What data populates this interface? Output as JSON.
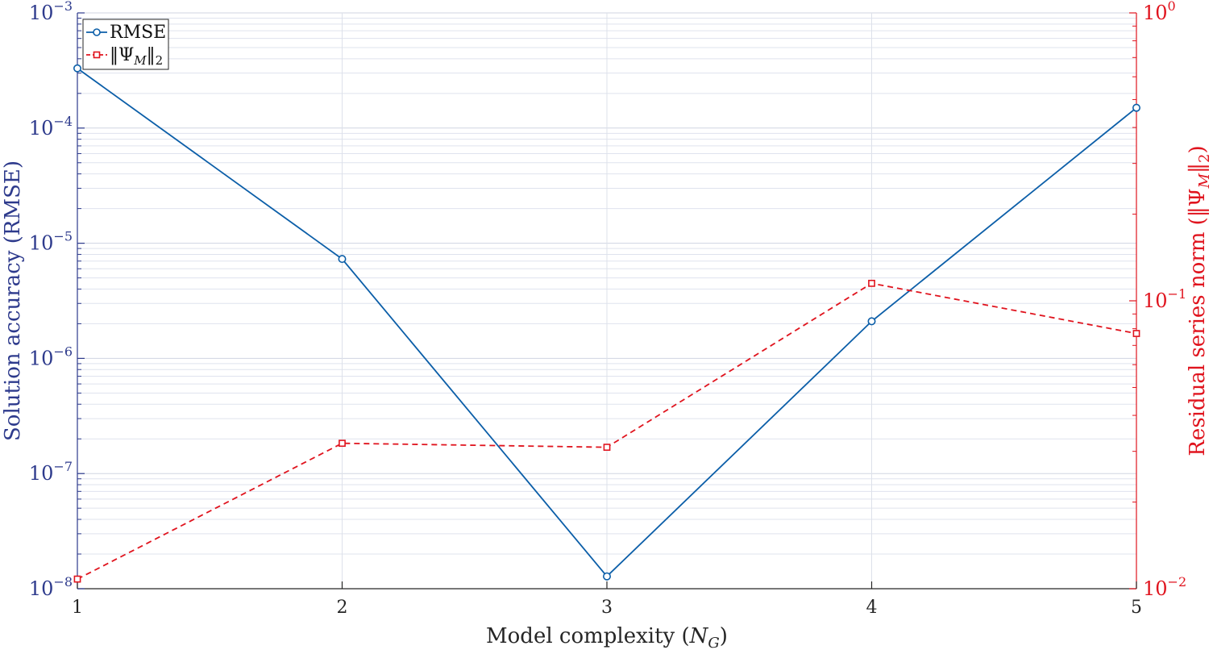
{
  "chart_data": {
    "type": "line",
    "xlabel": "Model complexity (N_G)",
    "ylabel_left": "Solution accuracy (RMSE)",
    "ylabel_right": "Residual series norm (‖Ψ_M‖₂)",
    "x": [
      1,
      2,
      3,
      4,
      5
    ],
    "x_ticks": [
      "1",
      "2",
      "3",
      "4",
      "5"
    ],
    "xlim": [
      1,
      5
    ],
    "y_left_scale": "log",
    "y_left_lim": [
      1e-08,
      0.001
    ],
    "y_left_ticks": [
      {
        "value": 1e-08,
        "mantissa": "10",
        "exp": "−8"
      },
      {
        "value": 1e-07,
        "mantissa": "10",
        "exp": "−7"
      },
      {
        "value": 1e-06,
        "mantissa": "10",
        "exp": "−6"
      },
      {
        "value": 1e-05,
        "mantissa": "10",
        "exp": "−5"
      },
      {
        "value": 0.0001,
        "mantissa": "10",
        "exp": "−4"
      },
      {
        "value": 0.001,
        "mantissa": "10",
        "exp": "−3"
      }
    ],
    "y_right_scale": "log",
    "y_right_lim": [
      0.01,
      1
    ],
    "y_right_ticks": [
      {
        "value": 0.01,
        "mantissa": "10",
        "exp": "−2"
      },
      {
        "value": 0.1,
        "mantissa": "10",
        "exp": "−1"
      },
      {
        "value": 1,
        "mantissa": "10",
        "exp": "0"
      }
    ],
    "grid": true,
    "legend_position": "top-left",
    "series": [
      {
        "name": "RMSE",
        "axis": "left",
        "color": "#0b5ea8",
        "style": "solid",
        "marker": "circle",
        "values": [
          0.00033,
          7.3e-06,
          1.28e-08,
          2.1e-06,
          0.00015
        ]
      },
      {
        "name": "‖Ψ_M‖₂",
        "axis": "right",
        "color": "#e0141e",
        "style": "dashed",
        "marker": "square",
        "values": [
          0.0108,
          0.032,
          0.031,
          0.115,
          0.077
        ]
      }
    ]
  }
}
